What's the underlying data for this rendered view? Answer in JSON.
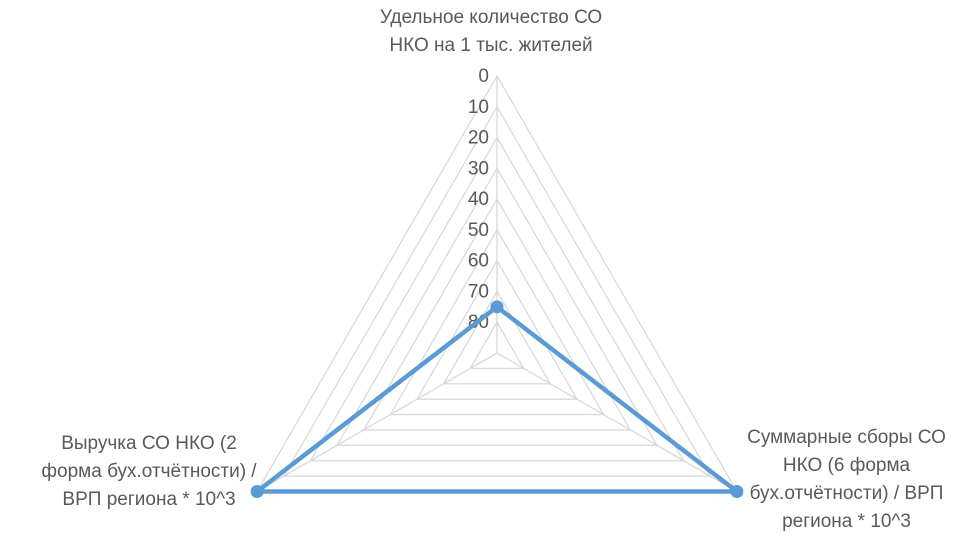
{
  "chart_data": {
    "type": "radar",
    "axes": [
      "Удельное количество СО\nНКО на 1 тыс. жителей",
      "Суммарные сборы СО\nНКО (6 форма\nбух.отчётности) / ВРП\nрегиона * 10^3",
      "Выручка СО НКО (2\nформа бух.отчётности) /\nВРП региона * 10^3"
    ],
    "radial_ticks": [
      "0",
      "10",
      "20",
      "30",
      "40",
      "50",
      "60",
      "70",
      "80"
    ],
    "radial_axis_reversed": true,
    "rlim": [
      0,
      90
    ],
    "series": [
      {
        "values": [
          75,
          0,
          0
        ],
        "color": "#5B9BD5"
      }
    ],
    "grid": true,
    "gridline_color": "#D9D9D9"
  }
}
